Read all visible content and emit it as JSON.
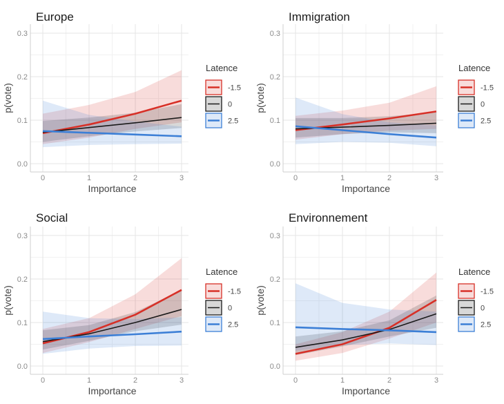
{
  "chart_data": [
    {
      "type": "line",
      "title": "Europe",
      "xlabel": "Importance",
      "ylabel": "p(vote)",
      "x": [
        0,
        1,
        2,
        3
      ],
      "xlim": [
        0,
        3
      ],
      "ylim": [
        0,
        0.3
      ],
      "yticks": [
        0.0,
        0.1,
        0.2,
        0.3
      ],
      "ytick_labels": [
        "0.0",
        "0.1",
        "0.2",
        "0.3"
      ],
      "xtick_labels": [
        "0",
        "1",
        "2",
        "3"
      ],
      "legend": {
        "title": "Latence",
        "placement": "right"
      },
      "series": [
        {
          "name": "-1.5",
          "color": "#d73027",
          "values": [
            0.07,
            0.09,
            0.115,
            0.145
          ],
          "ci_low": [
            0.045,
            0.06,
            0.08,
            0.095
          ],
          "ci_high": [
            0.115,
            0.135,
            0.165,
            0.215
          ]
        },
        {
          "name": "0",
          "color": "#1a1a1a",
          "values": [
            0.072,
            0.083,
            0.094,
            0.106
          ],
          "ci_low": [
            0.05,
            0.063,
            0.074,
            0.082
          ],
          "ci_high": [
            0.098,
            0.106,
            0.117,
            0.137
          ]
        },
        {
          "name": "2.5",
          "color": "#3c7fd6",
          "values": [
            0.075,
            0.071,
            0.067,
            0.063
          ],
          "ci_low": [
            0.038,
            0.043,
            0.045,
            0.046
          ],
          "ci_high": [
            0.145,
            0.112,
            0.097,
            0.085
          ]
        }
      ]
    },
    {
      "type": "line",
      "title": "Immigration",
      "xlabel": "Importance",
      "ylabel": "p(vote)",
      "x": [
        0,
        1,
        2,
        3
      ],
      "xlim": [
        0,
        3
      ],
      "ylim": [
        0,
        0.3
      ],
      "yticks": [
        0.0,
        0.1,
        0.2,
        0.3
      ],
      "ytick_labels": [
        "0.0",
        "0.1",
        "0.2",
        "0.3"
      ],
      "xtick_labels": [
        "0",
        "1",
        "2",
        "3"
      ],
      "legend": {
        "title": "Latence",
        "placement": "right"
      },
      "series": [
        {
          "name": "-1.5",
          "color": "#d73027",
          "values": [
            0.077,
            0.09,
            0.104,
            0.12
          ],
          "ci_low": [
            0.055,
            0.068,
            0.076,
            0.08
          ],
          "ci_high": [
            0.11,
            0.122,
            0.14,
            0.178
          ]
        },
        {
          "name": "0",
          "color": "#1a1a1a",
          "values": [
            0.08,
            0.084,
            0.088,
            0.093
          ],
          "ci_low": [
            0.06,
            0.068,
            0.072,
            0.07
          ],
          "ci_high": [
            0.105,
            0.105,
            0.109,
            0.118
          ]
        },
        {
          "name": "2.5",
          "color": "#3c7fd6",
          "values": [
            0.086,
            0.077,
            0.068,
            0.06
          ],
          "ci_low": [
            0.045,
            0.05,
            0.048,
            0.04
          ],
          "ci_high": [
            0.152,
            0.114,
            0.095,
            0.088
          ]
        }
      ]
    },
    {
      "type": "line",
      "title": "Social",
      "xlabel": "Importance",
      "ylabel": "p(vote)",
      "x": [
        0,
        1,
        2,
        3
      ],
      "xlim": [
        0,
        3
      ],
      "ylim": [
        0,
        0.3
      ],
      "yticks": [
        0.0,
        0.1,
        0.2,
        0.3
      ],
      "ytick_labels": [
        "0.0",
        "0.1",
        "0.2",
        "0.3"
      ],
      "xtick_labels": [
        "0",
        "1",
        "2",
        "3"
      ],
      "legend": {
        "title": "Latence",
        "placement": "right"
      },
      "series": [
        {
          "name": "-1.5",
          "color": "#d73027",
          "values": [
            0.052,
            0.078,
            0.118,
            0.175
          ],
          "ci_low": [
            0.03,
            0.055,
            0.085,
            0.115
          ],
          "ci_high": [
            0.085,
            0.11,
            0.165,
            0.248
          ]
        },
        {
          "name": "0",
          "color": "#1a1a1a",
          "values": [
            0.056,
            0.074,
            0.1,
            0.13
          ],
          "ci_low": [
            0.038,
            0.058,
            0.08,
            0.095
          ],
          "ci_high": [
            0.082,
            0.094,
            0.124,
            0.175
          ]
        },
        {
          "name": "2.5",
          "color": "#3c7fd6",
          "values": [
            0.062,
            0.068,
            0.073,
            0.079
          ],
          "ci_low": [
            0.028,
            0.04,
            0.046,
            0.047
          ],
          "ci_high": [
            0.125,
            0.11,
            0.108,
            0.112
          ]
        }
      ]
    },
    {
      "type": "line",
      "title": "Environnement",
      "xlabel": "Importance",
      "ylabel": "p(vote)",
      "x": [
        0,
        1,
        2,
        3
      ],
      "xlim": [
        0,
        3
      ],
      "ylim": [
        0,
        0.3
      ],
      "yticks": [
        0.0,
        0.1,
        0.2,
        0.3
      ],
      "ytick_labels": [
        "0.0",
        "0.1",
        "0.2",
        "0.3"
      ],
      "xtick_labels": [
        "0",
        "1",
        "2",
        "3"
      ],
      "legend": {
        "title": "Latence",
        "placement": "right"
      },
      "series": [
        {
          "name": "-1.5",
          "color": "#d73027",
          "values": [
            0.028,
            0.05,
            0.088,
            0.152
          ],
          "ci_low": [
            0.012,
            0.03,
            0.063,
            0.1
          ],
          "ci_high": [
            0.05,
            0.078,
            0.125,
            0.215
          ]
        },
        {
          "name": "0",
          "color": "#1a1a1a",
          "values": [
            0.043,
            0.06,
            0.084,
            0.12
          ],
          "ci_low": [
            0.025,
            0.045,
            0.068,
            0.088
          ],
          "ci_high": [
            0.068,
            0.08,
            0.105,
            0.162
          ]
        },
        {
          "name": "2.5",
          "color": "#3c7fd6",
          "values": [
            0.089,
            0.085,
            0.082,
            0.078
          ],
          "ci_low": [
            0.035,
            0.048,
            0.052,
            0.048
          ],
          "ci_high": [
            0.19,
            0.145,
            0.13,
            0.125
          ]
        }
      ]
    }
  ]
}
